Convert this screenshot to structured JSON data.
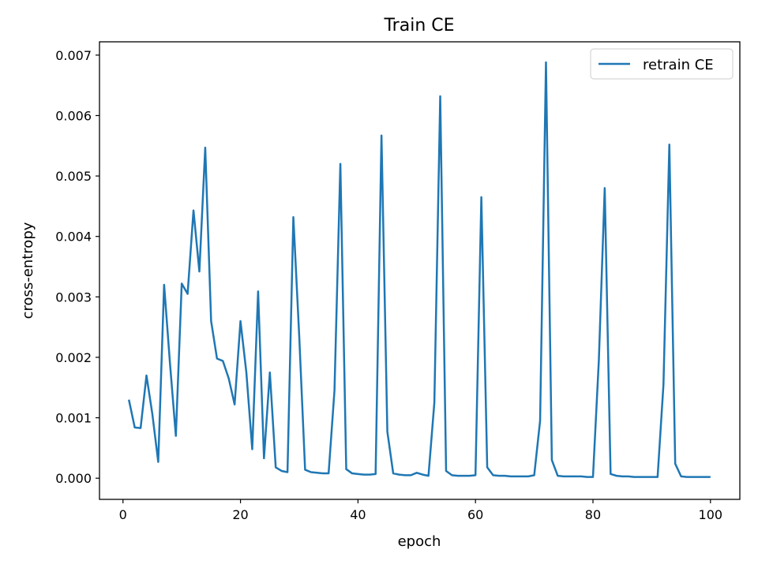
{
  "chart_data": {
    "type": "line",
    "title": "Train CE",
    "xlabel": "epoch",
    "ylabel": "cross-entropy",
    "xlim": [
      -4,
      105
    ],
    "ylim": [
      -0.00035,
      0.00722
    ],
    "xticks": [
      0,
      20,
      40,
      60,
      80,
      100
    ],
    "xtick_labels": [
      "0",
      "20",
      "40",
      "60",
      "80",
      "100"
    ],
    "yticks": [
      0,
      0.001,
      0.002,
      0.003,
      0.004,
      0.005,
      0.006,
      0.007
    ],
    "ytick_labels": [
      "0.000",
      "0.001",
      "0.002",
      "0.003",
      "0.004",
      "0.005",
      "0.006",
      "0.007"
    ],
    "grid": false,
    "legend_position": "top-right",
    "series": [
      {
        "name": "retrain CE",
        "color": "#1f77b4",
        "x": [
          1,
          2,
          3,
          4,
          5,
          6,
          7,
          8,
          9,
          10,
          11,
          12,
          13,
          14,
          15,
          16,
          17,
          18,
          19,
          20,
          21,
          22,
          23,
          24,
          25,
          26,
          27,
          28,
          29,
          30,
          31,
          32,
          33,
          34,
          35,
          36,
          37,
          38,
          39,
          40,
          41,
          42,
          43,
          44,
          45,
          46,
          47,
          48,
          49,
          50,
          51,
          52,
          53,
          54,
          55,
          56,
          57,
          58,
          59,
          60,
          61,
          62,
          63,
          64,
          65,
          66,
          67,
          68,
          69,
          70,
          71,
          72,
          73,
          74,
          75,
          76,
          77,
          78,
          79,
          80,
          81,
          82,
          83,
          84,
          85,
          86,
          87,
          88,
          89,
          90,
          91,
          92,
          93,
          94,
          95,
          96,
          97,
          98,
          99,
          100
        ],
        "y": [
          0.0013,
          0.00084,
          0.00083,
          0.0017,
          0.00106,
          0.00027,
          0.0032,
          0.0019,
          0.0007,
          0.00322,
          0.00305,
          0.00443,
          0.00342,
          0.00547,
          0.0026,
          0.00198,
          0.00194,
          0.00165,
          0.00122,
          0.0026,
          0.00175,
          0.00048,
          0.00309,
          0.00033,
          0.00175,
          0.00018,
          0.00012,
          0.0001,
          0.00432,
          0.00235,
          0.00014,
          0.0001,
          9e-05,
          8e-05,
          8e-05,
          0.00145,
          0.0052,
          0.00015,
          8e-05,
          7e-05,
          6e-05,
          6e-05,
          7e-05,
          0.00567,
          0.00077,
          8e-05,
          6e-05,
          5e-05,
          5e-05,
          9e-05,
          6e-05,
          4e-05,
          0.00125,
          0.00632,
          0.00012,
          5e-05,
          4e-05,
          4e-05,
          4e-05,
          5e-05,
          0.00465,
          0.00018,
          5e-05,
          4e-05,
          4e-05,
          3e-05,
          3e-05,
          3e-05,
          3e-05,
          5e-05,
          0.00095,
          0.00688,
          0.0003,
          4e-05,
          3e-05,
          3e-05,
          3e-05,
          3e-05,
          2e-05,
          2e-05,
          0.00195,
          0.0048,
          7e-05,
          4e-05,
          3e-05,
          3e-05,
          2e-05,
          2e-05,
          2e-05,
          2e-05,
          2e-05,
          0.00155,
          0.00552,
          0.00024,
          3e-05,
          2e-05,
          2e-05,
          2e-05,
          2e-05,
          2e-05
        ]
      }
    ]
  }
}
